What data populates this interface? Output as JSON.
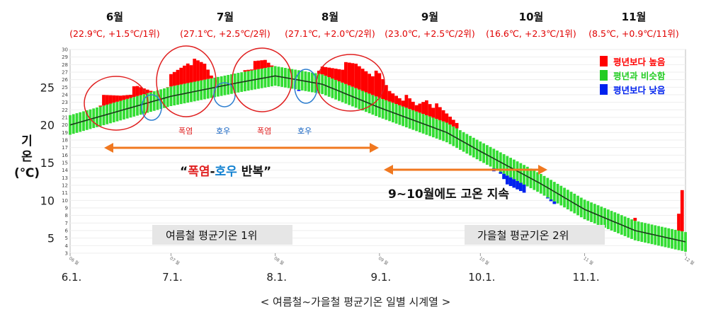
{
  "chart_data": {
    "type": "bar",
    "ylabel": [
      "기",
      "온",
      "(℃)"
    ],
    "ylim": [
      3,
      30
    ],
    "major_yticks": [
      "5",
      "10",
      "15",
      "20",
      "25"
    ],
    "minor_yticks": [
      "3",
      "4",
      "5",
      "6",
      "7",
      "8",
      "9",
      "10",
      "11",
      "12",
      "13",
      "14",
      "15",
      "16",
      "17",
      "18",
      "19",
      "20",
      "21",
      "22",
      "23",
      "24",
      "25",
      "26",
      "27",
      "28",
      "29",
      "30"
    ],
    "xticks": [
      "6.1.",
      "7.1.",
      "8.1.",
      "9.1.",
      "10.1.",
      "11.1."
    ],
    "xticks_small": [
      "06 월",
      "07 월",
      "08 월",
      "09 월",
      "10 월",
      "11 월",
      "12 월"
    ],
    "months": [
      {
        "name": "6월",
        "stat": "(22.9℃, +1.5℃/1위)"
      },
      {
        "name": "7월",
        "stat": "(27.1℃, +2.5℃/2위)"
      },
      {
        "name": "8월",
        "stat": "(27.1℃, +2.0℃/2위)"
      },
      {
        "name": "9월",
        "stat": "(23.0℃, +2.5℃/2위)"
      },
      {
        "name": "10월",
        "stat": "(16.6℃, +2.3℃/1위)"
      },
      {
        "name": "11월",
        "stat": "(8.5℃, +0.9℃/11위)"
      }
    ],
    "legend": [
      {
        "label": "평년보다 높음",
        "color": "#ff0000"
      },
      {
        "label": "평년과 비슷함",
        "color": "#22cc22"
      },
      {
        "label": "평년보다 낮음",
        "color": "#0022ee"
      }
    ],
    "series_note": "Daily mean temperature anomaly bars around the normal-range band; black line = climatological normal",
    "normal_anchors": [
      [
        0,
        20.0
      ],
      [
        30,
        23.8
      ],
      [
        50,
        25.6
      ],
      [
        61,
        26.5
      ],
      [
        75,
        25.4
      ],
      [
        92,
        22.3
      ],
      [
        112,
        19.0
      ],
      [
        122,
        16.5
      ],
      [
        140,
        12.2
      ],
      [
        153,
        8.8
      ],
      [
        168,
        6.0
      ],
      [
        183,
        4.5
      ]
    ],
    "daily_mean_anchors": [
      [
        0,
        20.0
      ],
      [
        5,
        21.2
      ],
      [
        10,
        23.5
      ],
      [
        15,
        24.0
      ],
      [
        20,
        24.8
      ],
      [
        25,
        24.6
      ],
      [
        28,
        22.8
      ],
      [
        30,
        26.5
      ],
      [
        35,
        28.5
      ],
      [
        40,
        28.0
      ],
      [
        43,
        26.0
      ],
      [
        46,
        24.5
      ],
      [
        48,
        24.5
      ],
      [
        52,
        27.5
      ],
      [
        58,
        28.5
      ],
      [
        62,
        27.5
      ],
      [
        65,
        26.0
      ],
      [
        68,
        24.5
      ],
      [
        72,
        25.5
      ],
      [
        75,
        27.5
      ],
      [
        85,
        28.0
      ],
      [
        92,
        26.5
      ],
      [
        95,
        24.5
      ],
      [
        100,
        23.5
      ],
      [
        103,
        22.5
      ],
      [
        106,
        23.5
      ],
      [
        110,
        22.0
      ],
      [
        115,
        20.5
      ],
      [
        118,
        18.0
      ],
      [
        120,
        17.5
      ],
      [
        124,
        15.5
      ],
      [
        130,
        12.0
      ],
      [
        135,
        11.5
      ],
      [
        140,
        11.0
      ],
      [
        144,
        10.0
      ],
      [
        148,
        10.5
      ],
      [
        152,
        9.5
      ],
      [
        155,
        8.0
      ],
      [
        160,
        7.0
      ],
      [
        165,
        6.5
      ],
      [
        168,
        7.8
      ],
      [
        172,
        6.0
      ],
      [
        176,
        5.5
      ],
      [
        180,
        4.5
      ],
      [
        182,
        11.0
      ],
      [
        183,
        4.5
      ]
    ],
    "month_start_days": [
      0,
      30,
      61,
      92,
      122,
      153,
      183
    ]
  },
  "annotations": {
    "heat": "폭염",
    "rain": "호우",
    "repeat_quote_open": "“",
    "repeat_heat": "폭염",
    "repeat_dash": "-",
    "repeat_rain": "호우",
    "repeat_rest": " 반복”",
    "sustained": "9~10월에도 고온 지속",
    "summer_box": "여름철 평균기온 1위",
    "autumn_box": "가을철 평균기온 2위",
    "caption": "< 여름철~가을철 평균기온 일별 시계열 >"
  }
}
